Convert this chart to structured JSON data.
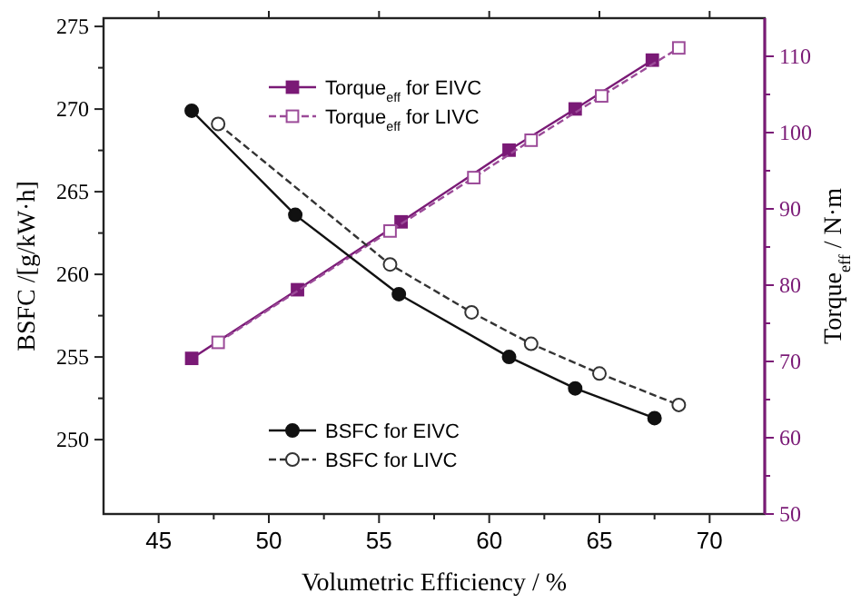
{
  "chart_data": {
    "type": "line",
    "xlabel": "Volumetric Efficiency / %",
    "ylabel": "BSFC /[g/kW·h]",
    "y2label": "Torque$_{eff}$ / N·m",
    "xlim": [
      42.5,
      72.5
    ],
    "xticks": [
      45,
      50,
      55,
      60,
      65,
      70
    ],
    "ylim": [
      245.5,
      275.5
    ],
    "yticks": [
      250,
      255,
      260,
      265,
      270,
      275
    ],
    "y2lim": [
      50,
      115
    ],
    "y2ticks": [
      50,
      60,
      70,
      80,
      90,
      100,
      110
    ],
    "legend": "left",
    "grid": false,
    "series": [
      {
        "name": "Torque$_{eff}$ for EIVC",
        "color": "#7a1a76",
        "axis": "y2",
        "marker": "square",
        "line_style": "solid",
        "x": [
          46.5,
          51.3,
          56.0,
          60.9,
          63.9,
          67.4
        ],
        "values": [
          70.4,
          79.4,
          88.3,
          97.7,
          103.1,
          109.5
        ]
      },
      {
        "name": "Torque$_{eff}$ for LIVC",
        "color": "#9b4a98",
        "axis": "y2",
        "marker": "square",
        "line_style": "dashed",
        "x": [
          47.7,
          55.5,
          59.3,
          61.9,
          65.1,
          68.6
        ],
        "values": [
          72.5,
          87.1,
          94.1,
          99.0,
          104.8,
          111.1
        ]
      },
      {
        "name": "BSFC for EIVC",
        "color": "#111111",
        "axis": "y",
        "marker": "circle",
        "line_style": "solid",
        "x": [
          46.5,
          51.2,
          55.9,
          60.9,
          63.9,
          67.5
        ],
        "values": [
          269.9,
          263.6,
          258.8,
          255.0,
          253.1,
          251.3
        ]
      },
      {
        "name": "BSFC for LIVC",
        "color": "#333333",
        "axis": "y",
        "marker": "circle",
        "line_style": "dashed",
        "x": [
          47.7,
          55.5,
          59.2,
          61.9,
          65.0,
          68.6
        ],
        "values": [
          269.1,
          260.6,
          257.7,
          255.8,
          254.0,
          252.1
        ]
      }
    ]
  }
}
